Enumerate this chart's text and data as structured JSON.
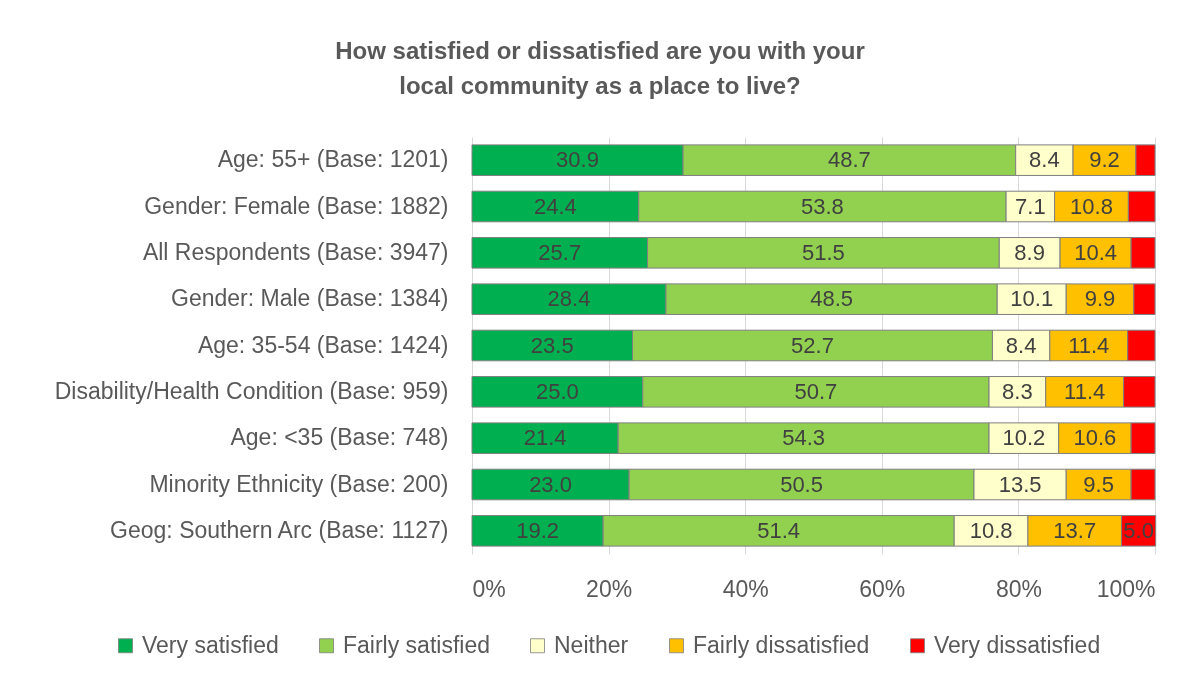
{
  "chart_data": {
    "type": "bar",
    "title": "How satisfied or dissatisfied are you with your local community as a place to live?",
    "orientation": "horizontal",
    "stacked": true,
    "categories": [
      "Age: 55+ (Base: 1201)",
      "Gender: Female (Base: 1882)",
      "All Respondents (Base: 3947)",
      "Gender: Male (Base: 1384)",
      "Age: 35-54 (Base: 1424)",
      "Disability/Health Condition (Base: 959)",
      "Age: <35 (Base: 748)",
      "Minority Ethnicity (Base: 200)",
      "Geog: Southern Arc (Base: 1127)"
    ],
    "series": [
      {
        "name": "Very satisfied",
        "color": "#00b050",
        "values": [
          30.9,
          24.4,
          25.7,
          28.4,
          23.5,
          25.0,
          21.4,
          23.0,
          19.2
        ],
        "value_labels": [
          "30.9",
          "24.4",
          "25.7",
          "28.4",
          "23.5",
          "25.0",
          "21.4",
          "23.0",
          "19.2"
        ]
      },
      {
        "name": "Fairly satisfied",
        "color": "#92d050",
        "values": [
          48.7,
          53.8,
          51.5,
          48.5,
          52.7,
          50.7,
          54.3,
          50.5,
          51.4
        ],
        "value_labels": [
          "48.7",
          "53.8",
          "51.5",
          "48.5",
          "52.7",
          "50.7",
          "54.3",
          "50.5",
          "51.4"
        ]
      },
      {
        "name": "Neither",
        "color": "#ffffcc",
        "values": [
          8.4,
          7.1,
          8.9,
          10.1,
          8.4,
          8.3,
          10.2,
          13.5,
          10.8
        ],
        "value_labels": [
          "8.4",
          "7.1",
          "8.9",
          "10.1",
          "8.4",
          "8.3",
          "10.2",
          "13.5",
          "10.8"
        ]
      },
      {
        "name": "Fairly dissatisfied",
        "color": "#ffc000",
        "values": [
          9.2,
          10.8,
          10.4,
          9.9,
          11.4,
          11.4,
          10.6,
          9.5,
          13.7
        ],
        "value_labels": [
          "9.2",
          "10.8",
          "10.4",
          "9.9",
          "11.4",
          "11.4",
          "10.6",
          "9.5",
          "13.7"
        ]
      },
      {
        "name": "Very dissatisfied",
        "color": "#ff0000",
        "values": [
          2.8,
          3.9,
          3.5,
          3.1,
          4.0,
          4.6,
          3.5,
          3.5,
          5.0
        ],
        "value_labels": [
          null,
          null,
          null,
          null,
          null,
          null,
          null,
          null,
          "5.0"
        ]
      }
    ],
    "xlim": [
      0,
      100
    ],
    "xticks": [
      {
        "value": 0,
        "label": "0%"
      },
      {
        "value": 20,
        "label": "20%"
      },
      {
        "value": 40,
        "label": "40%"
      },
      {
        "value": 60,
        "label": "60%"
      },
      {
        "value": 80,
        "label": "80%"
      },
      {
        "value": 100,
        "label": "100%"
      }
    ],
    "grid": "x",
    "legend": "bottom"
  }
}
